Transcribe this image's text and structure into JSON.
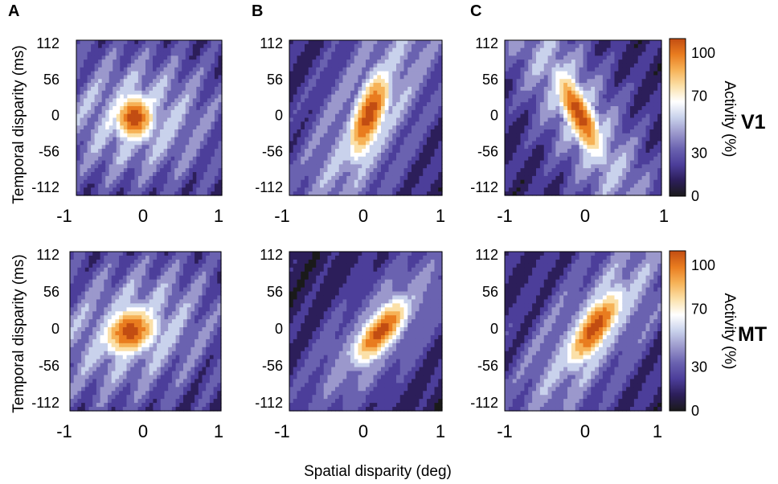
{
  "panel_letters": [
    "A",
    "B",
    "C"
  ],
  "row_labels": [
    "V1",
    "MT"
  ],
  "y_axis_label": "Temporal disparity (ms)",
  "x_axis_label": "Spatial disparity (deg)",
  "colorbar_label": "Activity (%)",
  "x_ticks": [
    "-1",
    "0",
    "1"
  ],
  "y_ticks": [
    "112",
    "56",
    "0",
    "-56",
    "-112"
  ],
  "colorbar_ticks": [
    "100",
    "70",
    "30",
    "0"
  ],
  "chart_data": [
    {
      "type": "heatmap",
      "panel": "A",
      "row": "V1",
      "xlim": [
        -1,
        1
      ],
      "ylim": [
        -112,
        112
      ],
      "peak": {
        "x": -0.2,
        "y": 0
      },
      "slope_ms_per_deg": 0,
      "x_width": 0.25,
      "y_width": 30,
      "baseline": 0.25
    },
    {
      "type": "heatmap",
      "panel": "B",
      "row": "V1",
      "xlim": [
        -1,
        1
      ],
      "ylim": [
        -112,
        112
      ],
      "peak": {
        "x": 0.05,
        "y": 5
      },
      "slope_ms_per_deg": 150,
      "x_width": 0.25,
      "y_width": 45,
      "baseline": 0.2
    },
    {
      "type": "heatmap",
      "panel": "C",
      "row": "V1",
      "xlim": [
        -1,
        1
      ],
      "ylim": [
        -112,
        112
      ],
      "peak": {
        "x": -0.05,
        "y": 5
      },
      "slope_ms_per_deg": -160,
      "x_width": 0.28,
      "y_width": 35,
      "baseline": 0.22
    },
    {
      "type": "heatmap",
      "panel": "A",
      "row": "MT",
      "xlim": [
        -1,
        1
      ],
      "ylim": [
        -112,
        112
      ],
      "peak": {
        "x": -0.2,
        "y": 0
      },
      "slope_ms_per_deg": 20,
      "x_width": 0.32,
      "y_width": 30,
      "baseline": 0.25
    },
    {
      "type": "heatmap",
      "panel": "B",
      "row": "MT",
      "xlim": [
        -1,
        1
      ],
      "ylim": [
        -112,
        112
      ],
      "peak": {
        "x": 0.2,
        "y": 0
      },
      "slope_ms_per_deg": 90,
      "x_width": 0.32,
      "y_width": 28,
      "baseline": 0.15
    },
    {
      "type": "heatmap",
      "panel": "C",
      "row": "MT",
      "xlim": [
        -1,
        1
      ],
      "ylim": [
        -112,
        112
      ],
      "peak": {
        "x": 0.15,
        "y": 5
      },
      "slope_ms_per_deg": 110,
      "x_width": 0.32,
      "y_width": 32,
      "baseline": 0.22
    }
  ],
  "colorscale": {
    "range": [
      0,
      100
    ],
    "stops": [
      "#1a1a1a",
      "#2c1e5a",
      "#4c3e9a",
      "#6a62b0",
      "#9b98cc",
      "#c9d2ec",
      "#ffffff",
      "#fbe0a8",
      "#f6b257",
      "#e97c1f",
      "#c24d12"
    ]
  }
}
